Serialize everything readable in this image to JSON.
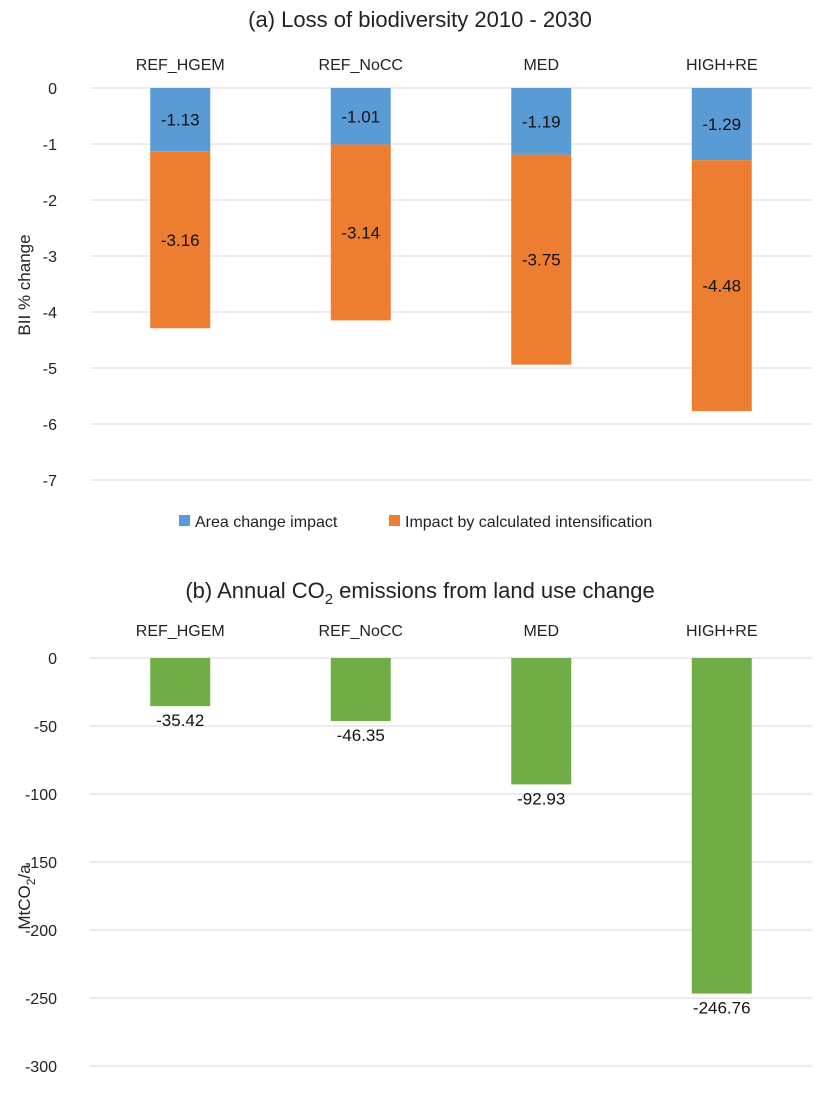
{
  "chart_data": [
    {
      "type": "bar",
      "stacked": true,
      "title": "(a) Loss of biodiversity 2010 - 2030",
      "ylabel": "BII % change",
      "xlabel": "",
      "categories": [
        "REF_HGEM",
        "REF_NoCC",
        "MED",
        "HIGH+RE"
      ],
      "category_axis_position": "top",
      "ylim": [
        -7,
        0
      ],
      "yticks": [
        0,
        -1,
        -2,
        -3,
        -4,
        -5,
        -6,
        -7
      ],
      "grid": true,
      "legend_position": "bottom",
      "series": [
        {
          "name": "Area change impact",
          "color": "#5B9BD5",
          "values": [
            -1.13,
            -1.01,
            -1.19,
            -1.29
          ],
          "labels": [
            "-1.13",
            "-1.01",
            "-1.19",
            "-1.29"
          ]
        },
        {
          "name": "Impact by calculated intensification",
          "color": "#ED7D31",
          "values": [
            -3.16,
            -3.14,
            -3.75,
            -4.48
          ],
          "labels": [
            "-3.16",
            "-3.14",
            "-3.75",
            "-4.48"
          ]
        }
      ]
    },
    {
      "type": "bar",
      "title_parts": [
        "(b) Annual CO",
        "2",
        " emissions from land use change"
      ],
      "ylabel_parts": [
        "MtCO",
        "2",
        "/a"
      ],
      "xlabel": "",
      "categories": [
        "REF_HGEM",
        "REF_NoCC",
        "MED",
        "HIGH+RE"
      ],
      "category_axis_position": "top",
      "ylim": [
        -300,
        0
      ],
      "yticks": [
        0,
        -50,
        -100,
        -150,
        -200,
        -250,
        -300
      ],
      "grid": true,
      "series": [
        {
          "color": "#70AD47",
          "values": [
            -35.42,
            -46.35,
            -92.93,
            -246.76
          ],
          "labels": [
            "-35.42",
            "-46.35",
            "-92.93",
            "-246.76"
          ]
        }
      ]
    }
  ]
}
